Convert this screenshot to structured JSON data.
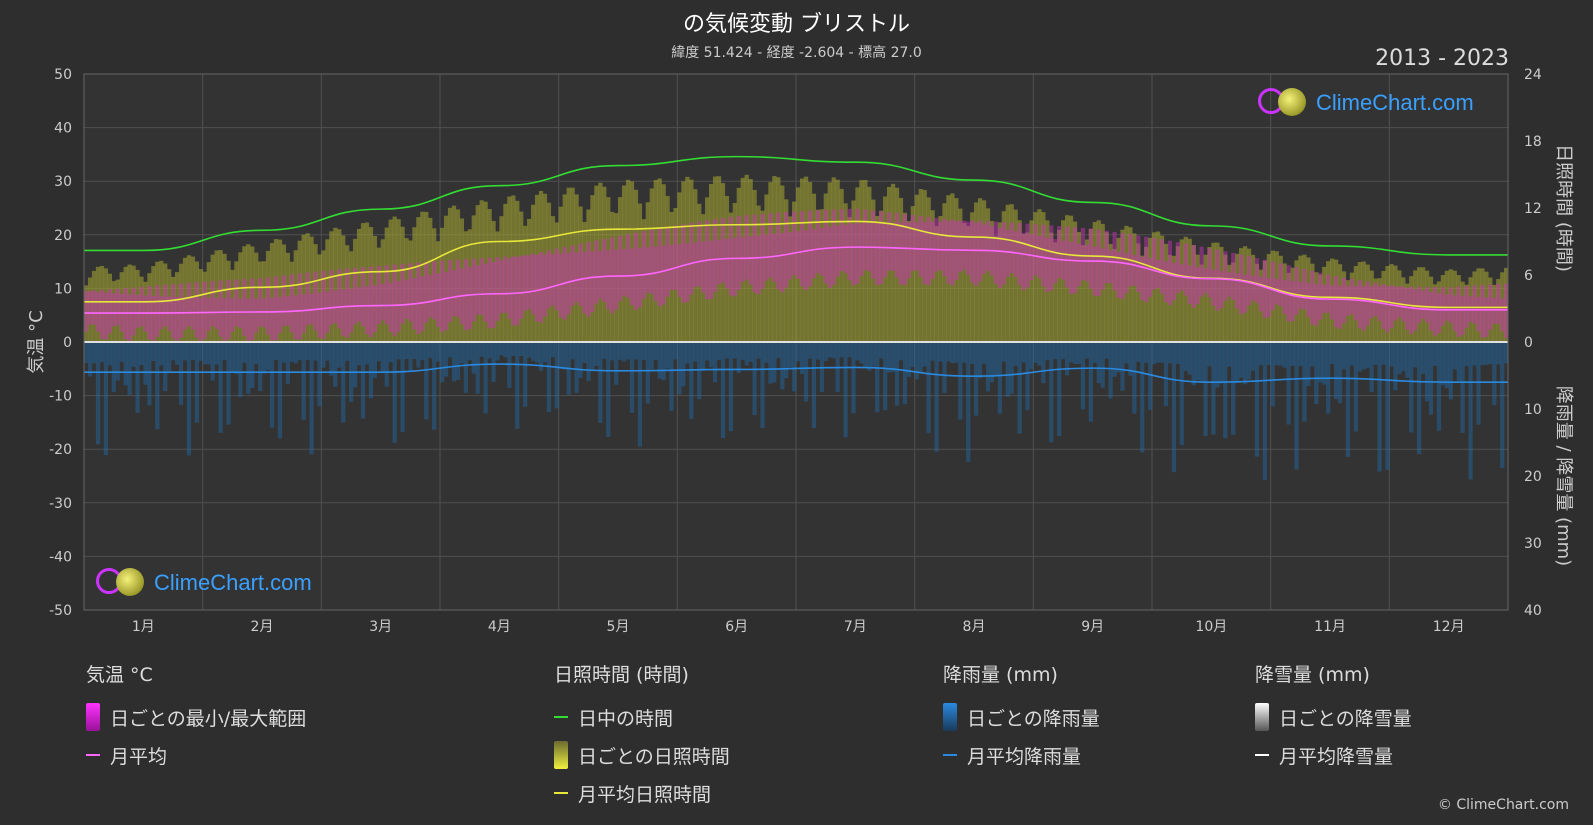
{
  "header": {
    "title": "の気候変動 ブリストル",
    "subtitle": "緯度 51.424 - 経度 -2.604 - 標高 27.0",
    "years": "2013 - 2023"
  },
  "watermark": {
    "text": "ClimeChart.com"
  },
  "copyright": "© ClimeChart.com",
  "colors": {
    "background": "#2e2e2e",
    "daylight": "#33dd33",
    "sunshine_avg": "#e8e83a",
    "sunshine_daily": "#a8a832",
    "temp_avg": "#ff66ff",
    "temp_range": "#d030c0",
    "rain_avg": "#2a8ae0",
    "rain_daily": "#1e6aa8",
    "snow_avg": "#ffffff",
    "snow_daily": "#888888",
    "brand": "#3aa0ff"
  },
  "legend": {
    "temperature": {
      "heading": "気温 °C",
      "items": [
        "日ごとの最小/最大範囲",
        "月平均"
      ]
    },
    "sunshine": {
      "heading": "日照時間 (時間)",
      "items": [
        "日中の時間",
        "日ごとの日照時間",
        "月平均日照時間"
      ]
    },
    "rain": {
      "heading": "降雨量 (mm)",
      "items": [
        "日ごとの降雨量",
        "月平均降雨量"
      ]
    },
    "snow": {
      "heading": "降雪量 (mm)",
      "items": [
        "日ごとの降雪量",
        "月平均降雪量"
      ]
    }
  },
  "chart_data": {
    "type": "line",
    "categories": [
      "1月",
      "2月",
      "3月",
      "4月",
      "5月",
      "6月",
      "7月",
      "8月",
      "9月",
      "10月",
      "11月",
      "12月"
    ],
    "y_left": {
      "label": "気温 °C",
      "min": -50,
      "max": 50,
      "ticks": [
        50,
        40,
        30,
        20,
        10,
        0,
        -10,
        -20,
        -30,
        -40,
        -50
      ]
    },
    "y_right_top": {
      "label": "日照時間 (時間)",
      "min": 0,
      "max": 24,
      "ticks": [
        24,
        18,
        12,
        6,
        0
      ]
    },
    "y_right_bottom": {
      "label": "降雨量 / 降雪量 (mm)",
      "min": 0,
      "max": 40,
      "ticks": [
        0,
        10,
        20,
        30,
        40
      ]
    },
    "grid": true,
    "series": [
      {
        "name": "日中の時間",
        "axis": "sunshine_hours",
        "values": [
          8.2,
          10.0,
          11.9,
          14.0,
          15.8,
          16.6,
          16.1,
          14.5,
          12.5,
          10.4,
          8.6,
          7.8
        ]
      },
      {
        "name": "月平均日照時間",
        "axis": "sunshine_hours",
        "values": [
          3.6,
          4.9,
          6.3,
          9.0,
          10.1,
          10.5,
          10.8,
          9.4,
          7.7,
          5.7,
          4.0,
          3.1
        ]
      },
      {
        "name": "月平均",
        "axis": "temperature_c",
        "values": [
          5.4,
          5.6,
          6.8,
          9.0,
          12.3,
          15.6,
          17.7,
          17.1,
          15.1,
          11.8,
          8.0,
          6.0
        ]
      },
      {
        "name": "月平均降雨量",
        "axis": "precipitation_mm",
        "values": [
          4.5,
          4.5,
          4.5,
          3.3,
          4.3,
          4.1,
          3.8,
          5.1,
          3.9,
          6.0,
          5.4,
          6.0
        ]
      },
      {
        "name": "月平均降雪量",
        "axis": "precipitation_mm",
        "values": [
          0,
          0,
          0,
          0,
          0,
          0,
          0,
          0,
          0,
          0,
          0,
          0
        ]
      }
    ],
    "daily_sunshine_max_hours": [
      7.0,
      9.0,
      11.0,
      13.0,
      14.5,
      15.0,
      14.7,
      13.0,
      11.0,
      9.0,
      7.5,
      6.5
    ],
    "daily_temp_range": {
      "min": [
        1.5,
        1.5,
        2.5,
        4.0,
        7.0,
        10.0,
        12.0,
        12.0,
        10.0,
        7.5,
        4.0,
        2.5
      ],
      "max": [
        9.5,
        10.0,
        12.5,
        15.5,
        18.5,
        21.5,
        23.5,
        22.5,
        19.5,
        15.5,
        11.5,
        9.5
      ]
    }
  }
}
